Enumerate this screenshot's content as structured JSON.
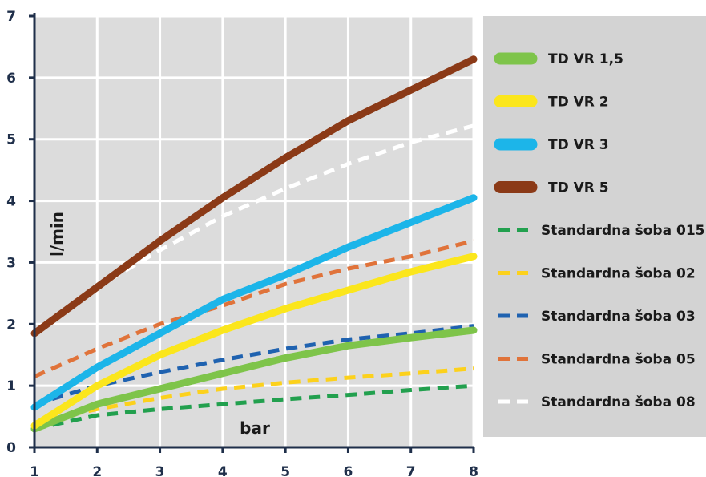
{
  "chart_data": {
    "type": "line",
    "xlabel": "bar",
    "ylabel": "l/min",
    "xlim": [
      1,
      8
    ],
    "ylim": [
      0,
      7
    ],
    "x_ticks": [
      "1",
      "2",
      "3",
      "4",
      "5",
      "6",
      "7",
      "8"
    ],
    "y_ticks": [
      "0",
      "1",
      "2",
      "3",
      "4",
      "5",
      "6",
      "7"
    ],
    "grid": true,
    "legend_position": "right",
    "x": [
      1,
      2,
      3,
      4,
      5,
      6,
      7,
      8
    ],
    "series": [
      {
        "name": "TD VR 1,5",
        "style": "solid",
        "color": "#7ec44a",
        "values": [
          0.3,
          0.7,
          0.95,
          1.2,
          1.45,
          1.65,
          1.78,
          1.9
        ]
      },
      {
        "name": "TD VR 2",
        "style": "solid",
        "color": "#fbe61c",
        "values": [
          0.35,
          1.0,
          1.5,
          1.9,
          2.25,
          2.55,
          2.85,
          3.1
        ]
      },
      {
        "name": "TD VR 3",
        "style": "solid",
        "color": "#1cb5e9",
        "values": [
          0.65,
          1.3,
          1.85,
          2.4,
          2.8,
          3.25,
          3.65,
          4.05
        ]
      },
      {
        "name": "TD VR 5",
        "style": "solid",
        "color": "#8b3a17",
        "values": [
          1.85,
          2.6,
          3.35,
          4.05,
          4.7,
          5.3,
          5.8,
          6.3
        ]
      },
      {
        "name": "Standardna šoba 015",
        "style": "dashed",
        "color": "#22a04e",
        "values": [
          0.3,
          0.52,
          0.62,
          0.7,
          0.78,
          0.85,
          0.93,
          1.0
        ]
      },
      {
        "name": "Standardna šoba 02",
        "style": "dashed",
        "color": "#fcd11c",
        "values": [
          0.4,
          0.62,
          0.8,
          0.95,
          1.05,
          1.13,
          1.2,
          1.28
        ]
      },
      {
        "name": "Standardna šoba 03",
        "style": "dashed",
        "color": "#1f62b0",
        "values": [
          0.7,
          1.0,
          1.22,
          1.42,
          1.6,
          1.75,
          1.85,
          1.97
        ]
      },
      {
        "name": "Standardna šoba 05",
        "style": "dashed",
        "color": "#e0733a",
        "values": [
          1.15,
          1.6,
          2.0,
          2.3,
          2.65,
          2.9,
          3.1,
          3.35
        ]
      },
      {
        "name": "Standardna šoba 08",
        "style": "dashed",
        "color": "#ffffff",
        "values": [
          1.85,
          2.6,
          3.2,
          3.75,
          4.2,
          4.6,
          4.95,
          5.22
        ]
      }
    ]
  },
  "colors": {
    "plot_background": "#dcdcdc",
    "legend_background": "#d3d3d3",
    "grid": "#ffffff",
    "axis": "#1f2f4a"
  }
}
